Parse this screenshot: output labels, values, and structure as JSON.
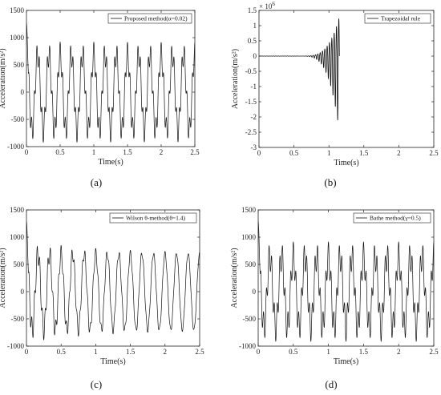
{
  "chart_data": [
    {
      "id": "a",
      "type": "line",
      "caption": "(a)",
      "xlabel": "Time(s)",
      "ylabel": "Acceleration(m/s²)",
      "legend": "Proposed method(α=0.02)",
      "legend_position": "top-right",
      "xlim": [
        0,
        2.5
      ],
      "ylim": [
        -1000,
        1500
      ],
      "xticks": [
        "0",
        "0.5",
        "1",
        "1.5",
        "2",
        "2.5"
      ],
      "yticks": [
        "-1000",
        "-500",
        "0",
        "500",
        "1000",
        "1500"
      ],
      "grid": false,
      "series": [
        {
          "signal": {
            "freq_hz": 6.0,
            "amplitude": 700,
            "hf_freq_hz": 26.0,
            "hf_amplitude": 220,
            "initial_spike": 1280,
            "initial_min": -950,
            "decay_to": 0.95
          }
        }
      ]
    },
    {
      "id": "b",
      "type": "line",
      "caption": "(b)",
      "xlabel": "Time(s)",
      "ylabel": "Acceleration(m/s²)",
      "legend": "Trapezoidal rule",
      "legend_position": "top-right",
      "exponent_label": "× 10",
      "exponent_value": "6",
      "xlim": [
        0,
        2.5
      ],
      "ylim": [
        -3,
        1.5
      ],
      "xticks": [
        "0",
        "0.5",
        "1",
        "1.5",
        "2",
        "2.5"
      ],
      "yticks": [
        "-3",
        "-2.5",
        "-2",
        "-1.5",
        "-1",
        "-0.5",
        "0",
        "0.5",
        "1",
        "1.5"
      ],
      "grid": false,
      "series": [
        {
          "signal": {
            "growth_start": 0.55,
            "end_time": 1.15,
            "freq_hz": 30.0,
            "peak_max": 1.3,
            "peak_min": -2.5
          }
        }
      ]
    },
    {
      "id": "c",
      "type": "line",
      "caption": "(c)",
      "xlabel": "Time(s)",
      "ylabel": "Acceleration(m/s²)",
      "legend": "Wilson θ-method(θ=1.4)",
      "legend_position": "top-right",
      "xlim": [
        0,
        2.5
      ],
      "ylim": [
        -1000,
        1500
      ],
      "xticks": [
        "0",
        "0.5",
        "1",
        "1.5",
        "2",
        "2.5"
      ],
      "yticks": [
        "-1000",
        "-500",
        "0",
        "500",
        "1000",
        "1500"
      ],
      "grid": false,
      "series": [
        {
          "signal": {
            "freq_hz": 6.0,
            "amplitude": 700,
            "hf_freq_hz": 26.0,
            "hf_amplitude": 230,
            "initial_spike": 1300,
            "initial_min": -950,
            "hf_decay": 0.9
          }
        }
      ]
    },
    {
      "id": "d",
      "type": "line",
      "caption": "(d)",
      "xlabel": "Time(s)",
      "ylabel": "Acceleration(m/s²)",
      "legend": "Bathe method(γ=0.5)",
      "legend_position": "top-right",
      "xlim": [
        0,
        2.5
      ],
      "ylim": [
        -1000,
        1500
      ],
      "xticks": [
        "0",
        "0.5",
        "1",
        "1.5",
        "2",
        "2.5"
      ],
      "yticks": [
        "-1000",
        "-500",
        "0",
        "500",
        "1000",
        "1500"
      ],
      "grid": false,
      "series": [
        {
          "signal": {
            "freq_hz": 6.0,
            "amplitude": 650,
            "hf_freq_hz": 26.0,
            "hf_amplitude": 260,
            "initial_spike": 1300,
            "initial_min": -950,
            "hf_decay": 0.0
          }
        }
      ]
    }
  ]
}
